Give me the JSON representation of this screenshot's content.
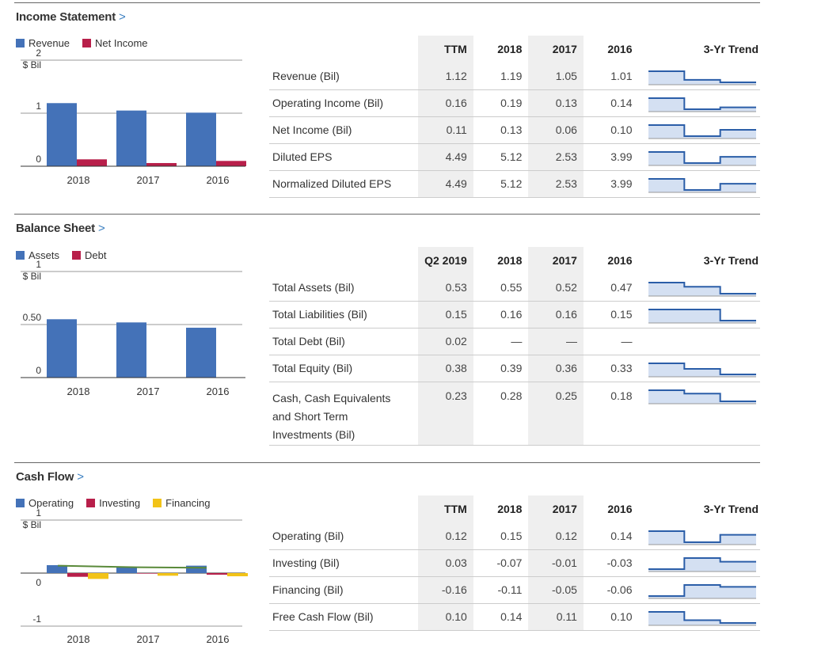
{
  "income": {
    "title": "Income Statement",
    "chevron": ">",
    "legend": [
      {
        "label": "Revenue",
        "color": "#4472b8"
      },
      {
        "label": "Net Income",
        "color": "#b81f4a"
      }
    ],
    "chart": {
      "yticks": [
        "2",
        "1",
        "0"
      ],
      "yunit": "$ Bil",
      "ymax": 2,
      "categories": [
        "2018",
        "2017",
        "2016"
      ],
      "series": [
        {
          "name": "Revenue",
          "values": [
            1.19,
            1.05,
            1.01
          ],
          "color": "#4472b8"
        },
        {
          "name": "Net Income",
          "values": [
            0.13,
            0.06,
            0.1
          ],
          "color": "#b81f4a"
        }
      ]
    },
    "columns": [
      "TTM",
      "2018",
      "2017",
      "2016",
      "3-Yr Trend"
    ],
    "rows": [
      {
        "label": "Revenue (Bil)",
        "values": [
          "1.12",
          "1.19",
          "1.05",
          "1.01"
        ],
        "trend": [
          1.19,
          1.05,
          1.01
        ]
      },
      {
        "label": "Operating Income (Bil)",
        "values": [
          "0.16",
          "0.19",
          "0.13",
          "0.14"
        ],
        "trend": [
          0.19,
          0.13,
          0.14
        ]
      },
      {
        "label": "Net Income (Bil)",
        "values": [
          "0.11",
          "0.13",
          "0.06",
          "0.10"
        ],
        "trend": [
          0.13,
          0.06,
          0.1
        ]
      },
      {
        "label": "Diluted EPS",
        "values": [
          "4.49",
          "5.12",
          "2.53",
          "3.99"
        ],
        "trend": [
          5.12,
          2.53,
          3.99
        ]
      },
      {
        "label": "Normalized Diluted EPS",
        "values": [
          "4.49",
          "5.12",
          "2.53",
          "3.99"
        ],
        "trend": [
          5.12,
          2.53,
          3.99
        ]
      }
    ]
  },
  "balance": {
    "title": "Balance Sheet",
    "chevron": ">",
    "legend": [
      {
        "label": "Assets",
        "color": "#4472b8"
      },
      {
        "label": "Debt",
        "color": "#b81f4a"
      }
    ],
    "chart": {
      "yticks": [
        "1",
        "0.50",
        "0"
      ],
      "yunit": "$ Bil",
      "ymax": 1,
      "categories": [
        "2018",
        "2017",
        "2016"
      ],
      "series": [
        {
          "name": "Assets",
          "values": [
            0.55,
            0.52,
            0.47
          ],
          "color": "#4472b8"
        }
      ]
    },
    "columns": [
      "Q2 2019",
      "2018",
      "2017",
      "2016",
      "3-Yr Trend"
    ],
    "rows": [
      {
        "label": "Total Assets (Bil)",
        "values": [
          "0.53",
          "0.55",
          "0.52",
          "0.47"
        ],
        "trend": [
          0.55,
          0.52,
          0.47
        ]
      },
      {
        "label": "Total Liabilities (Bil)",
        "values": [
          "0.15",
          "0.16",
          "0.16",
          "0.15"
        ],
        "trend": [
          0.16,
          0.16,
          0.15
        ]
      },
      {
        "label": "Total Debt (Bil)",
        "values": [
          "0.02",
          "—",
          "—",
          "—"
        ],
        "trend": []
      },
      {
        "label": "Total Equity (Bil)",
        "values": [
          "0.38",
          "0.39",
          "0.36",
          "0.33"
        ],
        "trend": [
          0.39,
          0.36,
          0.33
        ]
      },
      {
        "label": "Cash, Cash Equivalents and Short Term Investments (Bil)",
        "label_lines": [
          "Cash, Cash Equivalents",
          "and Short Term",
          "Investments (Bil)"
        ],
        "values": [
          "0.23",
          "0.28",
          "0.25",
          "0.18"
        ],
        "trend": [
          0.28,
          0.25,
          0.18
        ]
      }
    ]
  },
  "cashflow": {
    "title": "Cash Flow",
    "chevron": ">",
    "legend": [
      {
        "label": "Operating",
        "color": "#4472b8"
      },
      {
        "label": "Investing",
        "color": "#b81f4a"
      },
      {
        "label": "Financing",
        "color": "#f2c318"
      }
    ],
    "chart": {
      "yticks": [
        "1",
        "0",
        "-1"
      ],
      "yunit": "$ Bil",
      "ymax": 1,
      "ymin": -1,
      "categories": [
        "2018",
        "2017",
        "2016"
      ],
      "series": [
        {
          "name": "Operating",
          "values": [
            0.15,
            0.12,
            0.14
          ],
          "color": "#4472b8"
        },
        {
          "name": "Investing",
          "values": [
            -0.07,
            -0.01,
            -0.03
          ],
          "color": "#b81f4a"
        },
        {
          "name": "Financing",
          "values": [
            -0.11,
            -0.05,
            -0.06
          ],
          "color": "#f2c318"
        }
      ],
      "line": {
        "values": [
          0.14,
          0.11,
          0.1
        ],
        "color": "#5a8a3a"
      }
    },
    "columns": [
      "TTM",
      "2018",
      "2017",
      "2016",
      "3-Yr Trend"
    ],
    "rows": [
      {
        "label": "Operating (Bil)",
        "values": [
          "0.12",
          "0.15",
          "0.12",
          "0.14"
        ],
        "trend": [
          0.15,
          0.12,
          0.14
        ]
      },
      {
        "label": "Investing (Bil)",
        "values": [
          "0.03",
          "-0.07",
          "-0.01",
          "-0.03"
        ],
        "trend": [
          -0.07,
          -0.01,
          -0.03
        ]
      },
      {
        "label": "Financing (Bil)",
        "values": [
          "-0.16",
          "-0.11",
          "-0.05",
          "-0.06"
        ],
        "trend": [
          -0.11,
          -0.05,
          -0.06
        ]
      },
      {
        "label": "Free Cash Flow (Bil)",
        "values": [
          "0.10",
          "0.14",
          "0.11",
          "0.10"
        ],
        "trend": [
          0.14,
          0.11,
          0.1
        ]
      }
    ]
  }
}
